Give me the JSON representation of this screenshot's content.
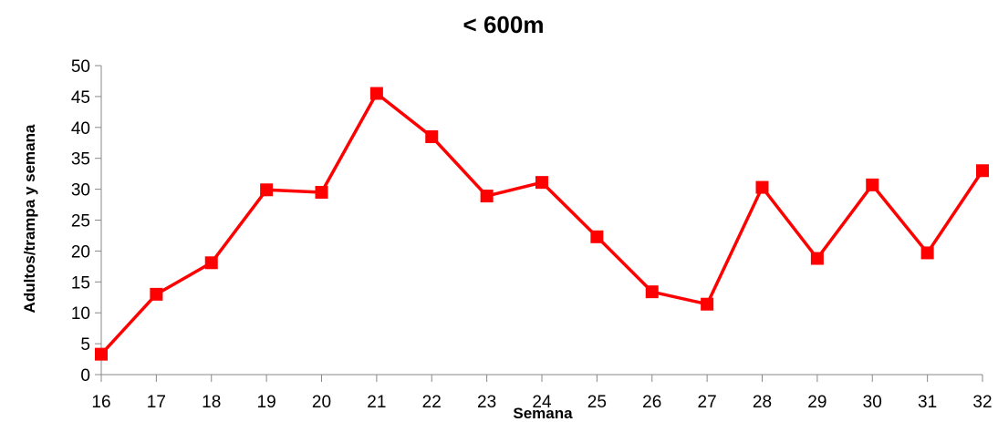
{
  "chart_data": {
    "type": "line",
    "title": "< 600m",
    "xlabel": "Semana",
    "ylabel": "Adultos/trampa y semana",
    "x": [
      16,
      17,
      18,
      19,
      20,
      21,
      22,
      23,
      24,
      25,
      26,
      27,
      28,
      29,
      30,
      31,
      32
    ],
    "series": [
      {
        "values": [
          3.3,
          13.0,
          18.1,
          29.9,
          29.5,
          45.5,
          38.5,
          28.9,
          31.1,
          22.3,
          13.4,
          11.4,
          30.3,
          18.8,
          30.7,
          19.7,
          33.0
        ],
        "color": "#ff0000",
        "marker": "square"
      }
    ],
    "ylim": [
      0,
      50
    ],
    "yticks": [
      0,
      5,
      10,
      15,
      20,
      25,
      30,
      35,
      40,
      45,
      50
    ],
    "xticks": [
      16,
      17,
      18,
      19,
      20,
      21,
      22,
      23,
      24,
      25,
      26,
      27,
      28,
      29,
      30,
      31,
      32
    ],
    "grid": false,
    "legend": "none"
  }
}
